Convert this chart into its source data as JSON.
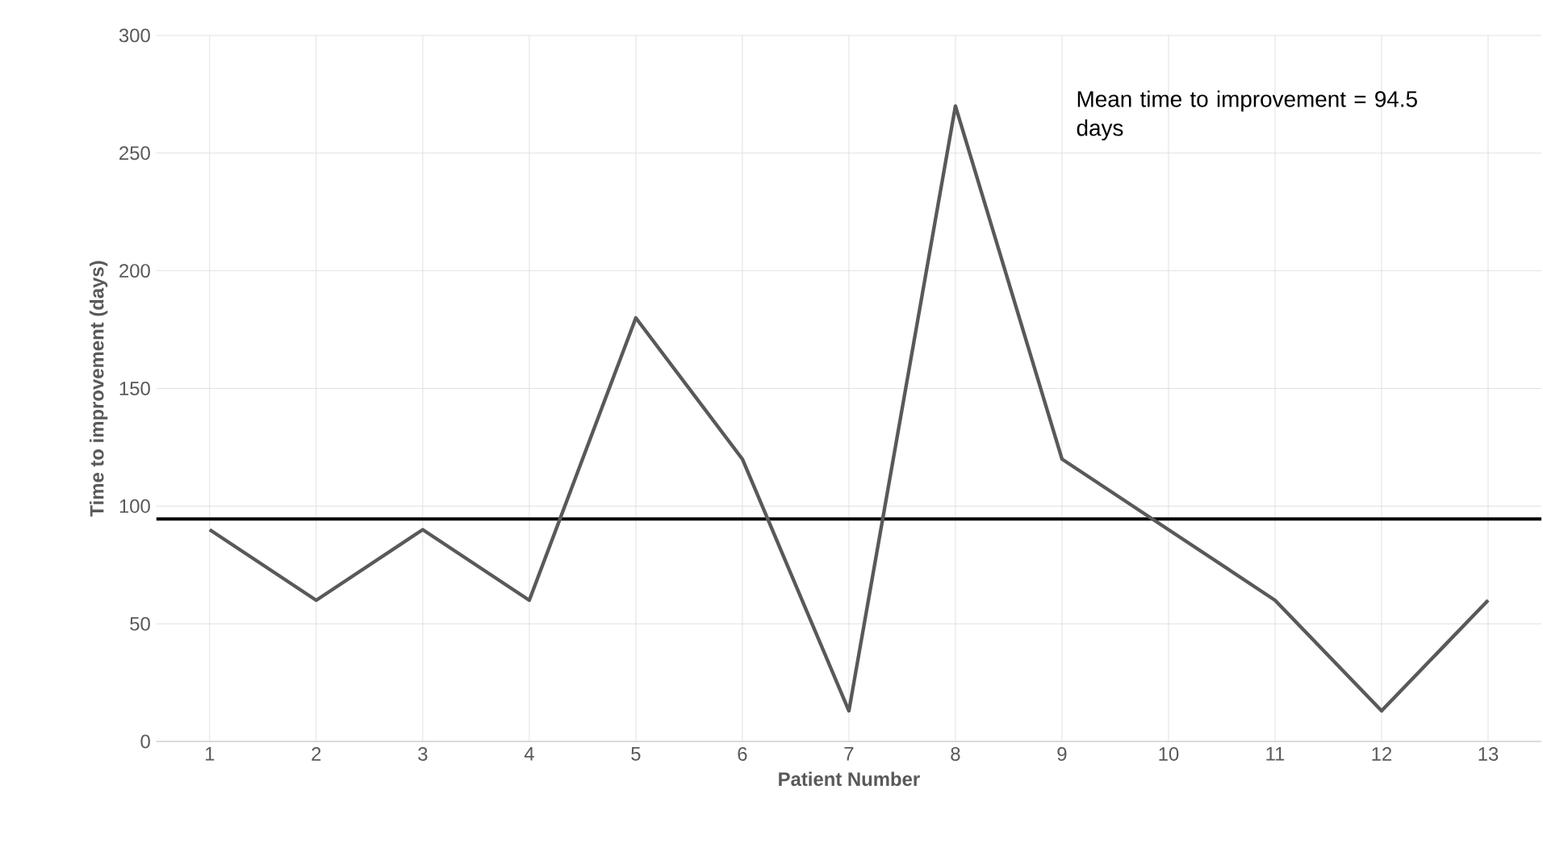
{
  "chart_data": {
    "type": "line",
    "xlabel": "Patient Number",
    "ylabel": "Time to improvement (days)",
    "categories": [
      "1",
      "2",
      "3",
      "4",
      "5",
      "6",
      "7",
      "8",
      "9",
      "10",
      "11",
      "12",
      "13"
    ],
    "values": [
      90,
      60,
      90,
      60,
      180,
      120,
      13,
      270,
      120,
      90,
      60,
      13,
      60
    ],
    "color": "#595959",
    "ylim": [
      0,
      300
    ],
    "yticks": [
      0,
      50,
      100,
      150,
      200,
      250,
      300
    ],
    "grid": true,
    "marker": "none",
    "line_style": "solid",
    "ref_lines": [
      {
        "axis": "y",
        "value": 94.5,
        "color": "#000000",
        "line_style": "solid"
      }
    ],
    "annotations": [
      "Mean time to improvement = 94.5 days"
    ]
  }
}
